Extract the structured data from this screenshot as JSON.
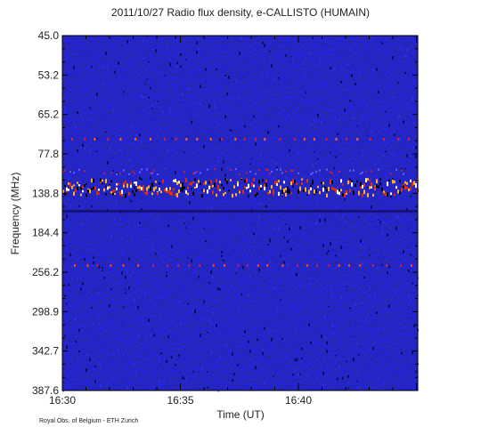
{
  "chart_data": {
    "type": "spectrogram",
    "title": "2011/10/27  Radio flux density, e-CALLISTO (HUMAIN)",
    "y_label": "Frequency (MHz)",
    "x_label": "Time (UT)",
    "ytick_labels": [
      "45.0",
      "53.2",
      "65.2",
      "77.8",
      "138.8",
      "184.4",
      "256.2",
      "298.9",
      "342.7",
      "387.6"
    ],
    "xtick_labels": [
      "16:30",
      "16:35",
      "16:40"
    ],
    "credit": "Royal Obs. of Belgium - ETH Zurich"
  }
}
